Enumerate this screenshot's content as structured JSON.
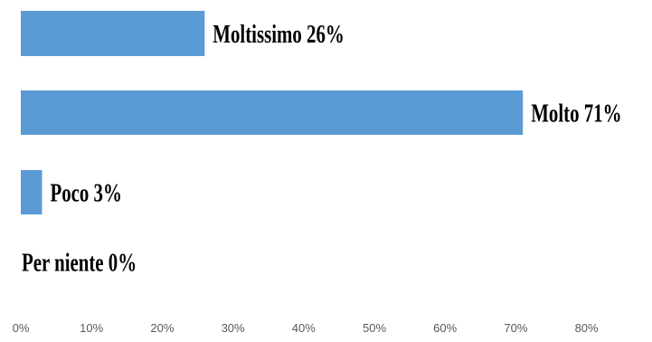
{
  "chart_data": {
    "type": "bar",
    "orientation": "horizontal",
    "categories": [
      "Moltissimo",
      "Molto",
      "Poco",
      "Per niente"
    ],
    "values": [
      26,
      71,
      3,
      0
    ],
    "data_labels": [
      "Moltissimo 26%",
      "Molto 71%",
      "Poco 3%",
      "Per niente 0%"
    ],
    "x_ticks": [
      "0%",
      "10%",
      "20%",
      "30%",
      "40%",
      "50%",
      "60%",
      "70%",
      "80%"
    ],
    "xlim": [
      0,
      80
    ],
    "grid": false,
    "bar_color": "#5B9BD5",
    "label_color": "#000000",
    "tick_color": "#595959"
  }
}
